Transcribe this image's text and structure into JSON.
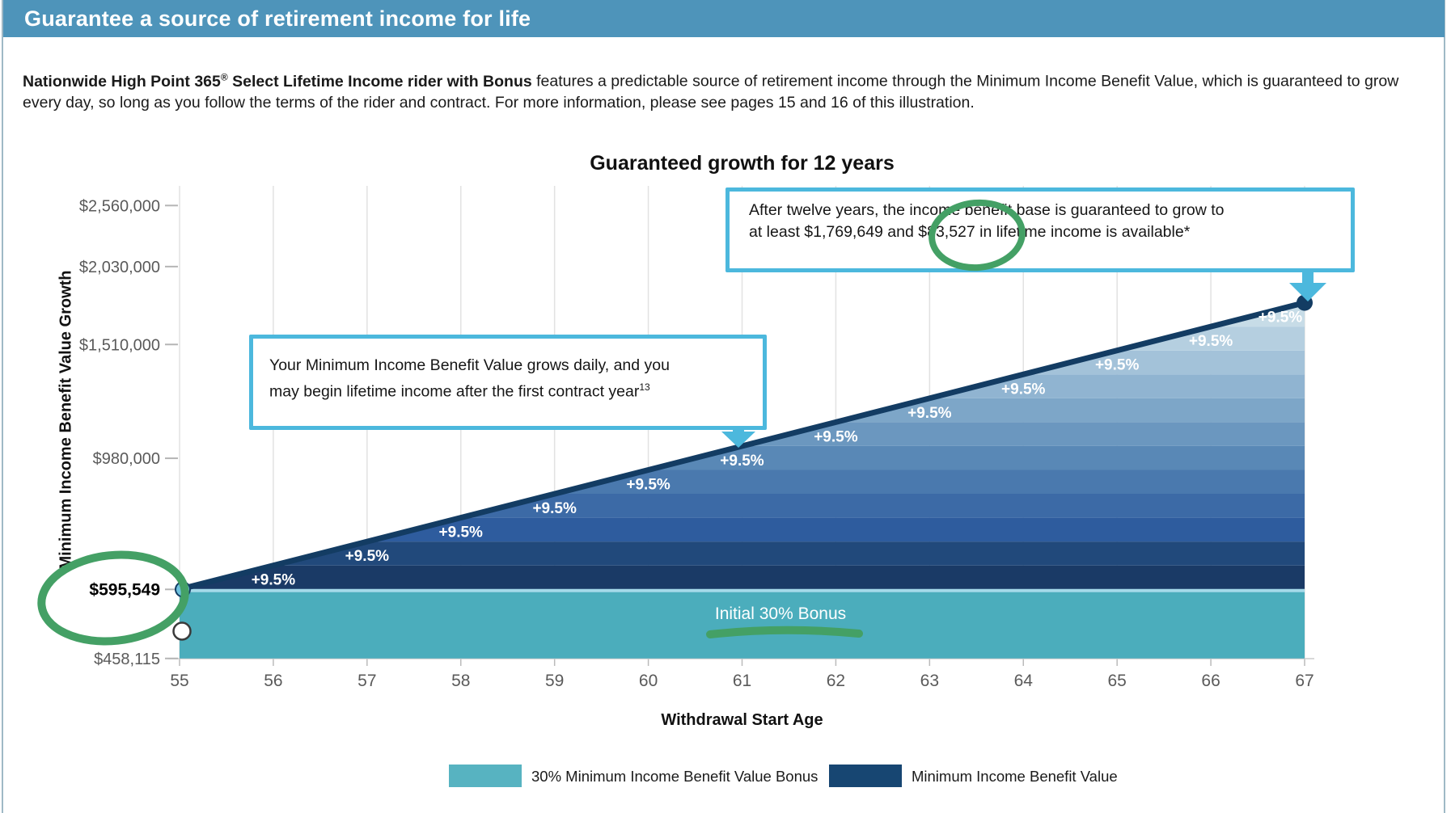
{
  "page": {
    "header": {
      "title": "Guarantee a source of retirement income for life"
    },
    "intro": {
      "bold_pre": "Nationwide High Point 365",
      "reg": "®",
      "bold_post": " Select Lifetime Income rider with Bonus",
      "text": " features a predictable source of retirement income through the Minimum Income Benefit Value, which is guaranteed to grow every day, so long as you follow the terms of the rider and contract. For more information, please see pages 15 and 16 of this illustration."
    }
  },
  "chart_data": {
    "type": "area",
    "title": "Guaranteed growth for 12 years",
    "xlabel": "Withdrawal Start Age",
    "ylabel": "Minimum Income Benefit Value Growth",
    "y_scale": "log",
    "grid": "vertical-only",
    "x": [
      55,
      56,
      57,
      58,
      59,
      60,
      61,
      62,
      63,
      64,
      65,
      66,
      67
    ],
    "values": [
      595549,
      652126,
      714078,
      781915,
      856197,
      937536,
      1026602,
      1124129,
      1230921,
      1347859,
      1475906,
      1616117,
      1769649
    ],
    "start_value": 595549,
    "baseline_value": 458115,
    "final_value": 1769649,
    "annual_growth_label": "+9.5%",
    "y_ticks": [
      {
        "label": "$2,560,000",
        "value": 2560000,
        "bold": false
      },
      {
        "label": "$2,030,000",
        "value": 2030000,
        "bold": false
      },
      {
        "label": "$1,510,000",
        "value": 1510000,
        "bold": false
      },
      {
        "label": "$980,000",
        "value": 980000,
        "bold": false
      },
      {
        "label": "$595,549",
        "value": 595549,
        "bold": true
      },
      {
        "label": "$458,115",
        "value": 458115,
        "bold": false
      }
    ],
    "bonus_band": {
      "label": "Initial 30% Bonus",
      "color": "#4badbc",
      "from": 458115,
      "to": 595549
    },
    "band_colors": [
      "#1a3a66",
      "#21497b",
      "#2e5c9e",
      "#3c6aa6",
      "#4a79ae",
      "#5988b6",
      "#6b97bf",
      "#7da6c8",
      "#90b4d1",
      "#a3c2d9",
      "#b5cfe0",
      "#c7dce7"
    ],
    "line_color": "#133c63",
    "accent_cyan": "#4cb8dd",
    "legend": {
      "items": [
        {
          "label": "30% Minimum Income Benefit Value Bonus",
          "color": "#57b3c1"
        },
        {
          "label": "Minimum Income Benefit Value",
          "color": "#174672"
        }
      ]
    },
    "callouts": {
      "top": {
        "line1": "After twelve years, the income benefit base is guaranteed to grow to",
        "line2": "at least $1,769,649 and $83,527 in lifetime income is available*"
      },
      "mid": {
        "line1": "Your Minimum Income Benefit Value grows daily, and you",
        "line2": "may begin lifetime income after the first contract year",
        "line2_sup": "13"
      }
    },
    "annotation_color": "#44a065"
  }
}
